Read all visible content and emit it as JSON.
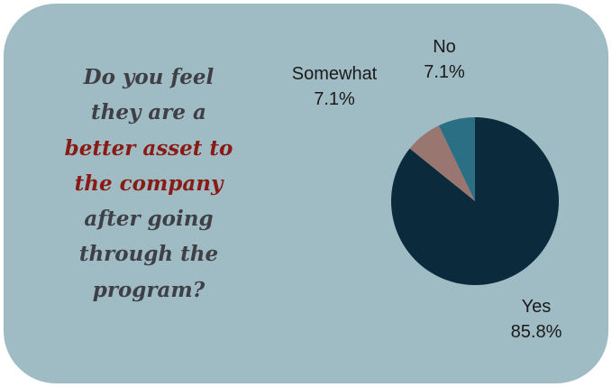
{
  "question": {
    "lines": [
      {
        "text": "Do you feel",
        "highlight": false
      },
      {
        "text": "they are a",
        "highlight": false
      },
      {
        "text": "better asset to",
        "highlight": true
      },
      {
        "text": "the company",
        "highlight": true
      },
      {
        "text": "after going",
        "highlight": false
      },
      {
        "text": "through the",
        "highlight": false
      },
      {
        "text": "program?",
        "highlight": false
      }
    ]
  },
  "colors": {
    "card_background": "#9fbcc4",
    "question_text": "#3f3f46",
    "question_highlight": "#8a1a14"
  },
  "chart_data": {
    "type": "pie",
    "title": "",
    "slices": [
      {
        "label": "Yes",
        "value": 85.8,
        "display": "85.8%",
        "color": "#0b2a3c"
      },
      {
        "label": "Somewhat",
        "value": 7.1,
        "display": "7.1%",
        "color": "#9a7671"
      },
      {
        "label": "No",
        "value": 7.1,
        "display": "7.1%",
        "color": "#2a6f84"
      }
    ],
    "start": "top, clockwise from Yes",
    "legend": "none"
  }
}
